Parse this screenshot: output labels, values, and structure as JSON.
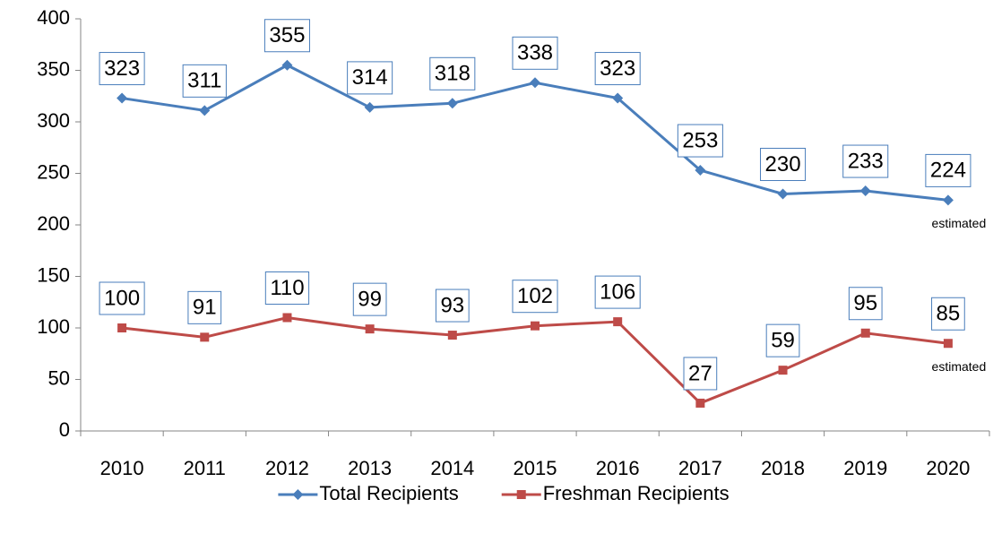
{
  "chart_data": {
    "type": "line",
    "categories": [
      "2010",
      "2011",
      "2012",
      "2013",
      "2014",
      "2015",
      "2016",
      "2017",
      "2018",
      "2019",
      "2020"
    ],
    "series": [
      {
        "name": "Total Recipients",
        "color": "#4a7ebb",
        "marker": "diamond",
        "values": [
          323,
          311,
          355,
          314,
          318,
          338,
          323,
          253,
          230,
          233,
          224
        ],
        "annotation": "estimated"
      },
      {
        "name": "Freshman Recipients",
        "color": "#be4b48",
        "marker": "square",
        "values": [
          100,
          91,
          110,
          99,
          93,
          102,
          106,
          27,
          59,
          95,
          85
        ],
        "annotation": "estimated"
      }
    ],
    "ylim": [
      0,
      400
    ],
    "yticks": [
      0,
      50,
      100,
      150,
      200,
      250,
      300,
      350,
      400
    ],
    "grid": false,
    "legend": "bottom"
  }
}
